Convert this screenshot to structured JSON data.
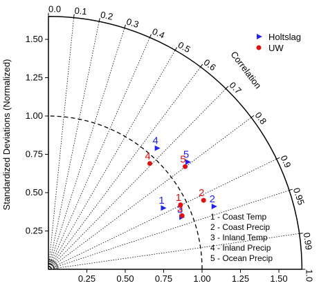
{
  "chart_data": {
    "type": "scatter",
    "subtype": "taylor-diagram",
    "ylabel": "Standardized Deviations (Normalized)",
    "arc_label": "Correlation",
    "std_ticks": [
      "0.25",
      "0.50",
      "0.75",
      "1.00",
      "1.25",
      "1.50"
    ],
    "std_range": [
      0,
      1.65
    ],
    "correlation_ticks": [
      {
        "value": 0.0,
        "label": "0.0"
      },
      {
        "value": 0.1,
        "label": "0.1"
      },
      {
        "value": 0.2,
        "label": "0.2"
      },
      {
        "value": 0.3,
        "label": "0.3"
      },
      {
        "value": 0.4,
        "label": "0.4"
      },
      {
        "value": 0.5,
        "label": "0.5"
      },
      {
        "value": 0.6,
        "label": "0.6"
      },
      {
        "value": 0.7,
        "label": "0.7"
      },
      {
        "value": 0.8,
        "label": "0.8"
      },
      {
        "value": 0.9,
        "label": "0.9"
      },
      {
        "value": 0.95,
        "label": "0.95"
      },
      {
        "value": 0.99,
        "label": "0.99"
      },
      {
        "value": 1.0,
        "label": "1.0"
      }
    ],
    "correlation_rays": [
      0.1,
      0.2,
      0.3,
      0.4,
      0.5,
      0.6,
      0.7,
      0.8,
      0.9,
      0.95,
      0.99
    ],
    "reference_std": 1.0,
    "legend_placement": "top-right",
    "series": [
      {
        "name": "Holtslag",
        "marker": "triangle-right",
        "color": "#2222ee",
        "points": [
          {
            "id": "1",
            "x": 0.75,
            "y": 0.4
          },
          {
            "id": "2",
            "x": 1.08,
            "y": 0.41
          },
          {
            "id": "3",
            "x": 0.87,
            "y": 0.34
          },
          {
            "id": "4",
            "x": 0.71,
            "y": 0.79
          },
          {
            "id": "5",
            "x": 0.91,
            "y": 0.7
          }
        ]
      },
      {
        "name": "UW",
        "marker": "circle",
        "color": "#dd1111",
        "points": [
          {
            "id": "1",
            "x": 0.86,
            "y": 0.42
          },
          {
            "id": "2",
            "x": 1.01,
            "y": 0.45
          },
          {
            "id": "3",
            "x": 0.87,
            "y": 0.35
          },
          {
            "id": "4",
            "x": 0.66,
            "y": 0.69
          },
          {
            "id": "5",
            "x": 0.89,
            "y": 0.67
          }
        ]
      }
    ],
    "key": [
      "1 - Coast Temp",
      "2 - Coast Precip",
      "3 - Inland Temp",
      "4 - Inland Precip",
      "5 - Ocean Precip"
    ]
  }
}
